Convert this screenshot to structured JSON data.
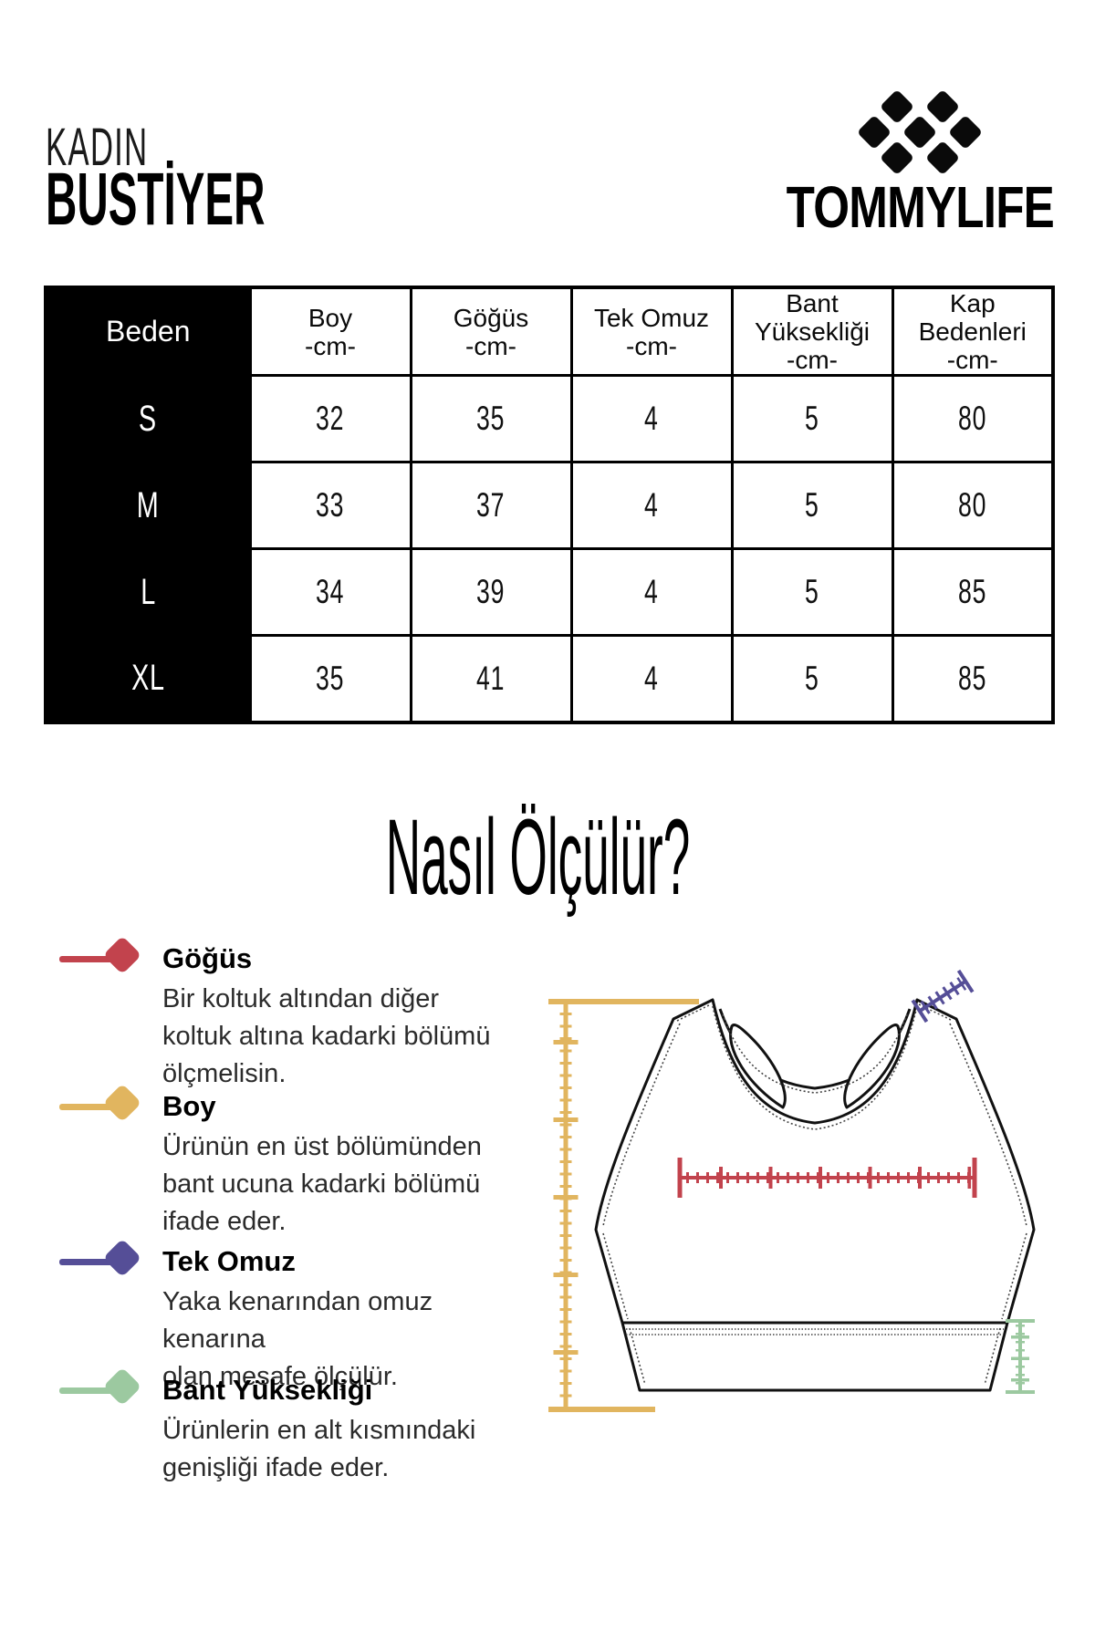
{
  "header": {
    "category": "KADIN",
    "product_type": "BUSTİYER",
    "brand": "TOMMYLIFE"
  },
  "section_heading": "Nasıl Ölçülür?",
  "colors": {
    "gogus_red": "#C2434D",
    "boy_gold": "#E1B55F",
    "tek_omuz_purple": "#554E97",
    "bant_yuksekligi_green": "#9CC9A0",
    "ink": "#0A0A0A",
    "table_header_bg": "#000000"
  },
  "size_table": {
    "headers": [
      "Beden",
      "Boy\n-cm-",
      "Göğüs\n-cm-",
      "Tek Omuz\n-cm-",
      "Bant\nYüksekliği\n-cm-",
      "Kap\nBedenleri\n-cm-"
    ],
    "rows": [
      {
        "size": "S",
        "values": [
          "32",
          "35",
          "4",
          "5",
          "80"
        ]
      },
      {
        "size": "M",
        "values": [
          "33",
          "37",
          "4",
          "5",
          "80"
        ]
      },
      {
        "size": "L",
        "values": [
          "34",
          "39",
          "4",
          "5",
          "85"
        ]
      },
      {
        "size": "XL",
        "values": [
          "35",
          "41",
          "4",
          "5",
          "85"
        ]
      }
    ]
  },
  "legend": {
    "items": [
      {
        "title": "Göğüs",
        "color": "#C2434D",
        "description": "Bir koltuk altından diğer\nkoltuk altına kadarki bölümü\nölçmelisin."
      },
      {
        "title": "Boy",
        "color": "#E1B55F",
        "description": "Ürünün en üst bölümünden\nbant ucuna kadarki bölümü\nifade eder."
      },
      {
        "title": "Tek Omuz",
        "color": "#554E97",
        "description": "Yaka kenarından omuz kenarına\nolan mesafe ölçülür."
      },
      {
        "title": "Bant Yüksekliği",
        "color": "#9CC9A0",
        "description": "Ürünlerin en alt kısmındaki\ngenişliği ifade eder."
      }
    ]
  }
}
